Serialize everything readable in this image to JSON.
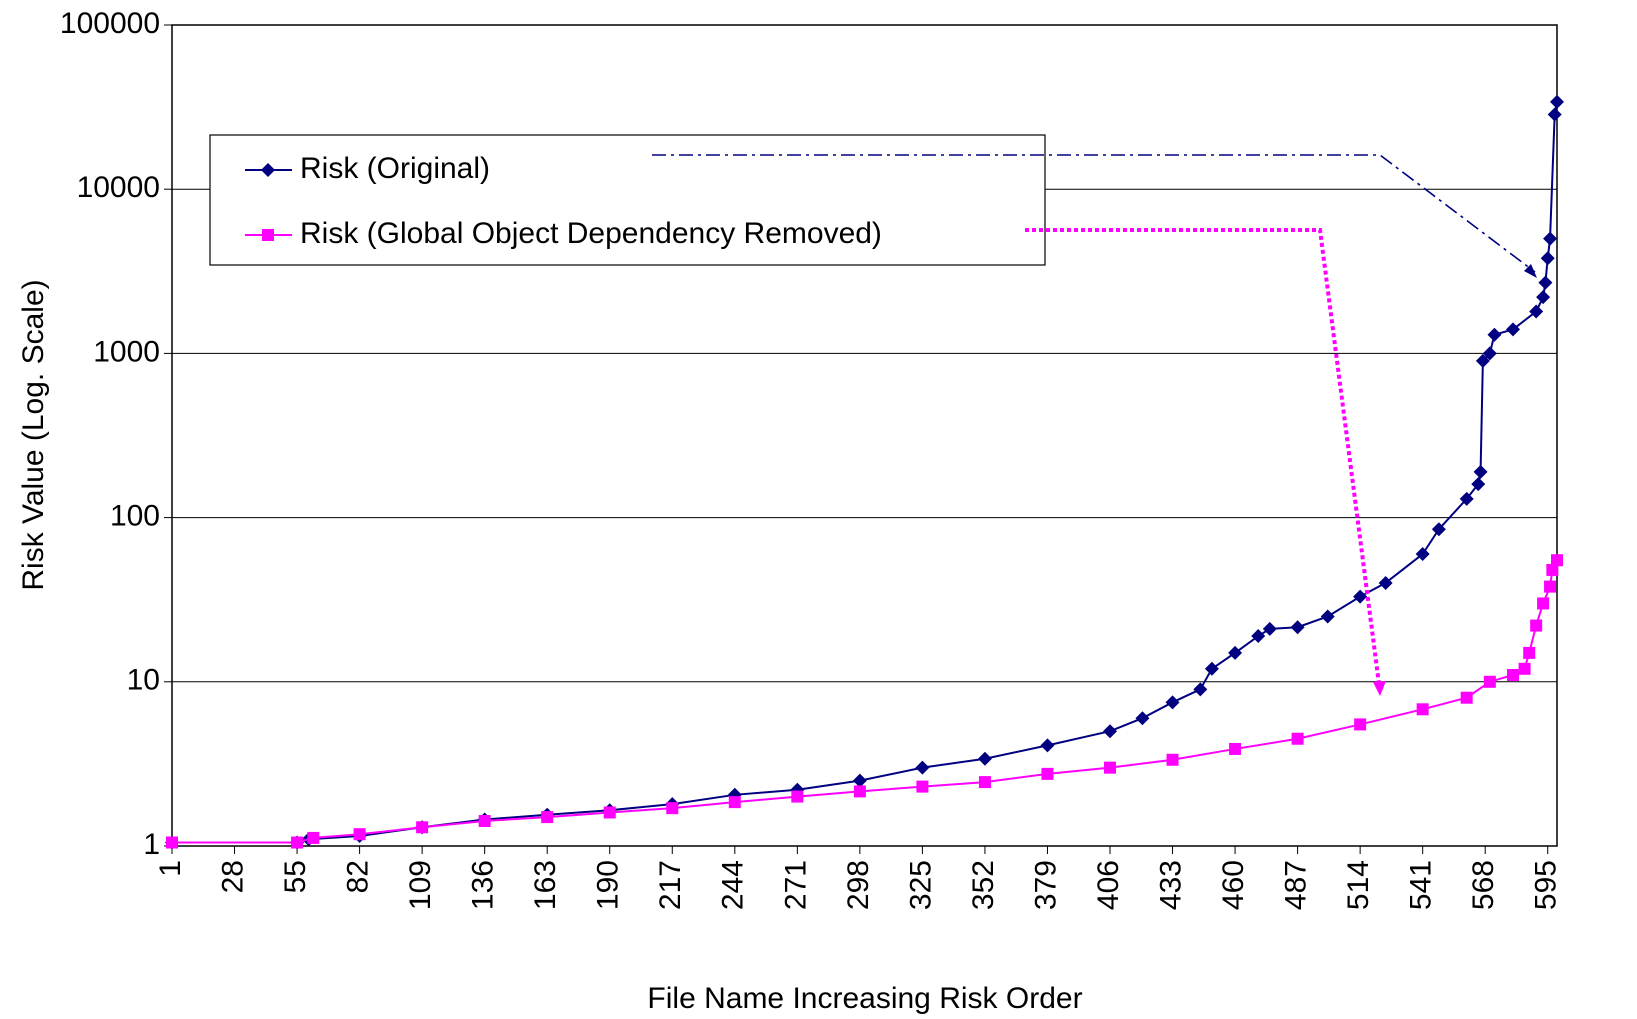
{
  "chart_data": {
    "type": "line",
    "ylabel": "Risk Value (Log. Scale)",
    "xlabel": "File Name Increasing Risk Order",
    "log_y": true,
    "grid": true,
    "legend": "upper left",
    "xlim": [
      1,
      599
    ],
    "ylim": [
      1,
      100000
    ],
    "xticks": [
      1,
      28,
      55,
      82,
      109,
      136,
      163,
      190,
      217,
      244,
      271,
      298,
      325,
      352,
      379,
      406,
      433,
      460,
      487,
      514,
      541,
      568,
      595
    ],
    "yticks": [
      1,
      10,
      100,
      1000,
      10000,
      100000
    ],
    "series": [
      {
        "name": "Risk (Original)",
        "color": "#000080",
        "marker": "diamond",
        "x": [
          1,
          55,
          60,
          82,
          109,
          136,
          163,
          190,
          217,
          244,
          271,
          298,
          325,
          352,
          379,
          406,
          420,
          433,
          445,
          450,
          460,
          470,
          475,
          487,
          500,
          514,
          525,
          541,
          548,
          560,
          565,
          566,
          567,
          570,
          572,
          580,
          590,
          593,
          594,
          595,
          596,
          598,
          599
        ],
        "values": [
          1.05,
          1.05,
          1.1,
          1.15,
          1.3,
          1.45,
          1.55,
          1.65,
          1.8,
          2.05,
          2.2,
          2.5,
          3.0,
          3.4,
          4.1,
          5.0,
          6.0,
          7.5,
          9,
          12,
          15,
          19,
          21,
          21.5,
          25,
          33,
          40,
          60,
          85,
          130,
          160,
          190,
          900,
          1000,
          1300,
          1400,
          1800,
          2200,
          2700,
          3800,
          5000,
          28500,
          34000
        ]
      },
      {
        "name": "Risk (Global Object Dependency Removed)",
        "color": "#ff00ff",
        "marker": "square",
        "x": [
          1,
          55,
          62,
          82,
          109,
          136,
          163,
          190,
          217,
          244,
          271,
          298,
          325,
          352,
          379,
          406,
          433,
          460,
          487,
          514,
          541,
          560,
          570,
          580,
          585,
          587,
          590,
          593,
          596,
          597,
          599
        ],
        "values": [
          1.05,
          1.05,
          1.12,
          1.18,
          1.3,
          1.42,
          1.5,
          1.6,
          1.7,
          1.85,
          2.0,
          2.15,
          2.3,
          2.45,
          2.75,
          3.0,
          3.35,
          3.9,
          4.5,
          5.5,
          6.8,
          8.0,
          10,
          11,
          12,
          15,
          22,
          30,
          38,
          48,
          55
        ]
      }
    ]
  }
}
